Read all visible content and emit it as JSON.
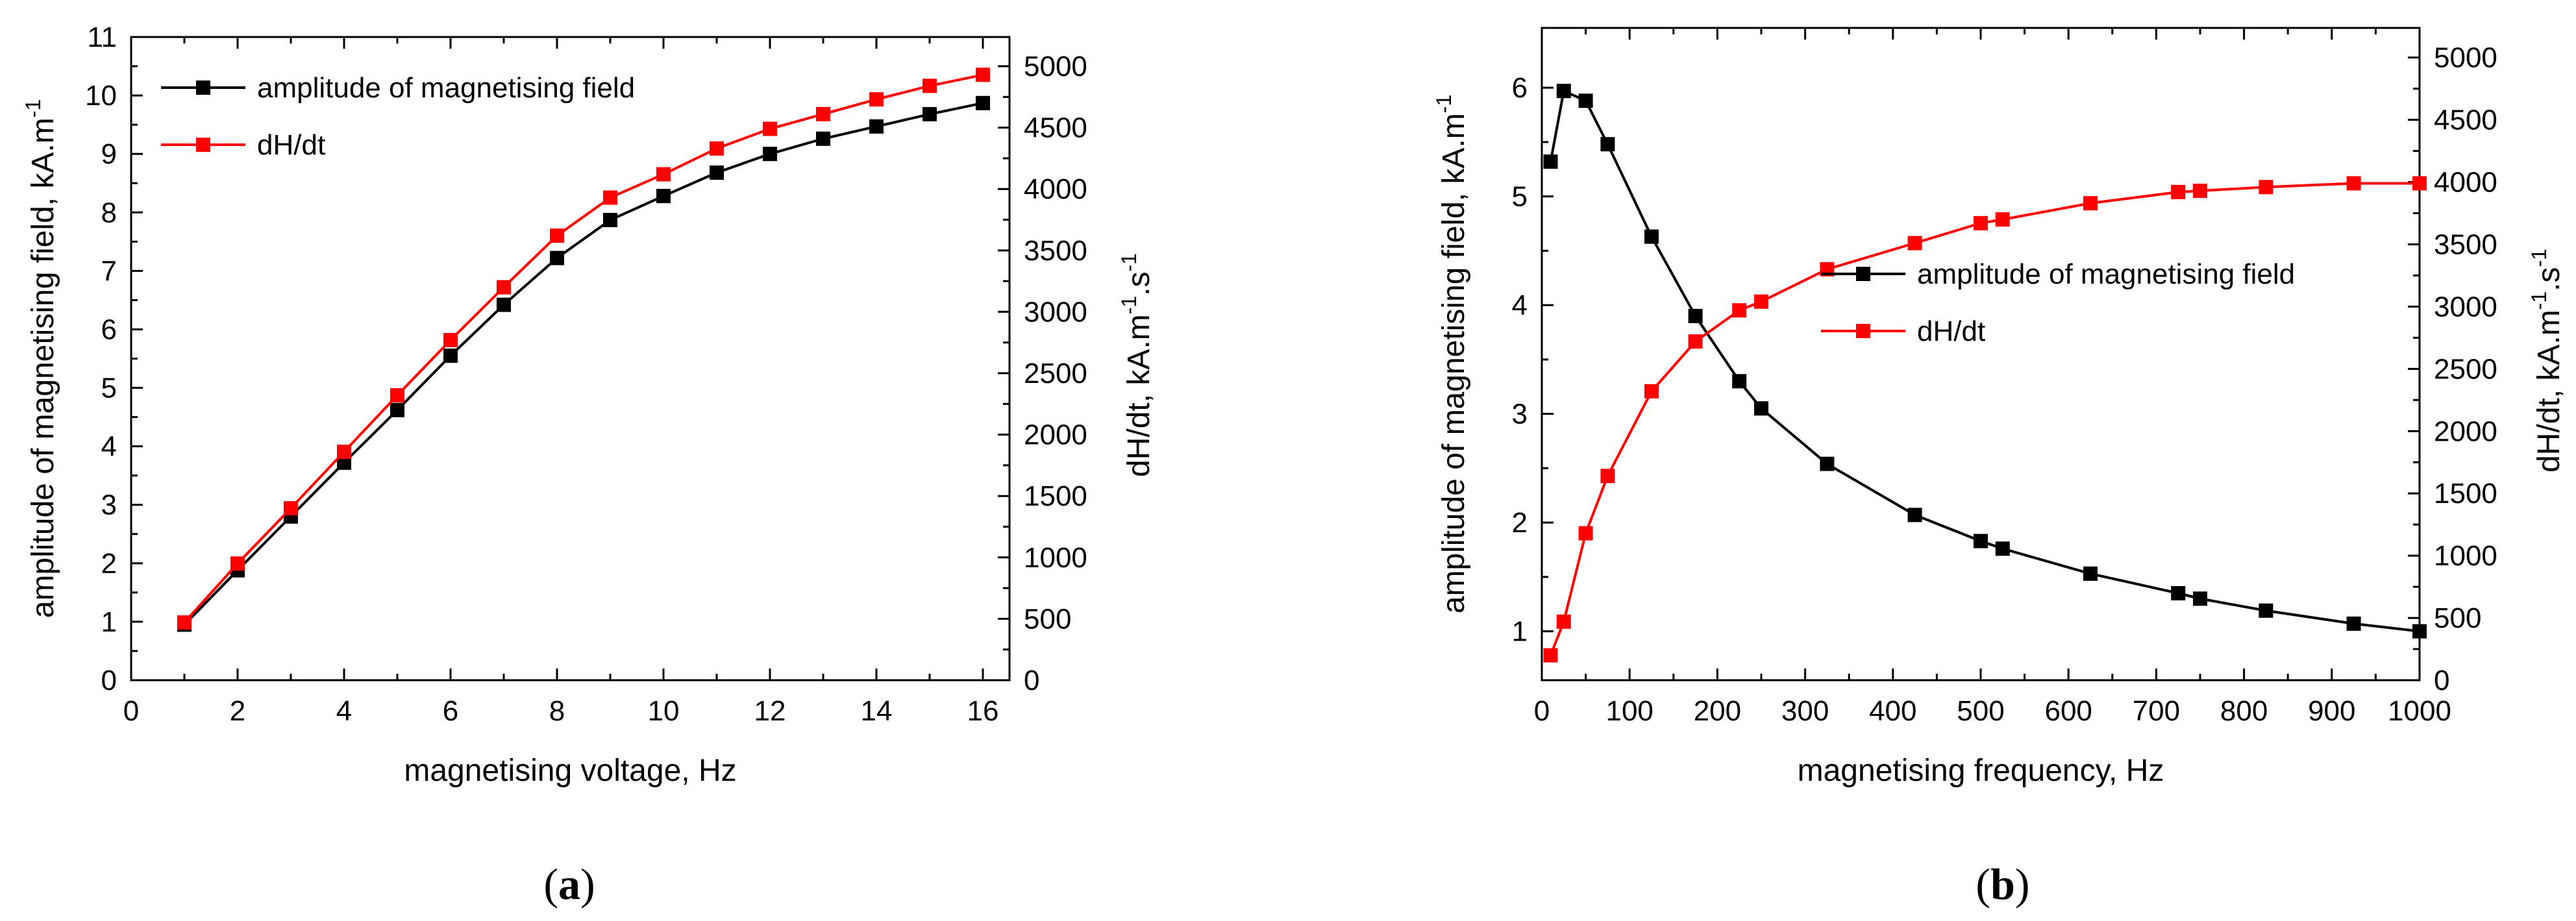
{
  "chart_data": [
    {
      "type": "line",
      "panel_label": "a",
      "xlabel": "magnetising voltage, Hz",
      "ylabel_left": "amplitude of magnetising field, kA.m",
      "ylabel_left_sup": "-1",
      "ylabel_right": "dH/dt, kA.m",
      "ylabel_right_sup1": "-1",
      "ylabel_right_mid": ".s",
      "ylabel_right_sup2": "-1",
      "xlim": [
        0,
        16.5
      ],
      "ylim_left": [
        0,
        11
      ],
      "ylim_right": [
        0,
        5238
      ],
      "xticks": [
        0,
        2,
        4,
        6,
        8,
        10,
        12,
        14,
        16
      ],
      "yticks_left": [
        0,
        1,
        2,
        3,
        4,
        5,
        6,
        7,
        8,
        9,
        10,
        11
      ],
      "yticks_right": [
        0,
        500,
        1000,
        1500,
        2000,
        2500,
        3000,
        3500,
        4000,
        4500,
        5000
      ],
      "legend_position": "top-left",
      "series": [
        {
          "name": "amplitude of magnetising field",
          "axis": "left",
          "color": "#000000",
          "x": [
            1,
            2,
            3,
            4,
            5,
            6,
            7,
            8,
            9,
            10,
            11,
            12,
            13,
            14,
            15,
            16
          ],
          "y": [
            0.95,
            1.88,
            2.8,
            3.72,
            4.62,
            5.55,
            6.42,
            7.22,
            7.87,
            8.28,
            8.68,
            9.0,
            9.26,
            9.47,
            9.68,
            9.87
          ]
        },
        {
          "name": "dH/dt",
          "axis": "right",
          "color": "#ff0000",
          "x": [
            1,
            2,
            3,
            4,
            5,
            6,
            7,
            8,
            9,
            10,
            11,
            12,
            13,
            14,
            15,
            16
          ],
          "y": [
            470,
            950,
            1400,
            1860,
            2320,
            2770,
            3200,
            3620,
            3930,
            4120,
            4330,
            4490,
            4610,
            4730,
            4840,
            4930
          ]
        }
      ]
    },
    {
      "type": "line",
      "panel_label": "b",
      "xlabel": "magnetising frequency, Hz",
      "ylabel_left": "amplitude of magnetising field, kA.m",
      "ylabel_left_sup": "-1",
      "ylabel_right": "dH/dt, kA.m",
      "ylabel_right_sup1": "-1",
      "ylabel_right_mid": ".s",
      "ylabel_right_sup2": "-1",
      "xlim": [
        0,
        1000
      ],
      "ylim_left": [
        0.55,
        6.55
      ],
      "ylim_right": [
        0,
        5238
      ],
      "xticks": [
        0,
        100,
        200,
        300,
        400,
        500,
        600,
        700,
        800,
        900,
        1000
      ],
      "yticks_left": [
        1,
        2,
        3,
        4,
        5,
        6
      ],
      "yticks_right": [
        0,
        500,
        1000,
        1500,
        2000,
        2500,
        3000,
        3500,
        4000,
        4500,
        5000
      ],
      "legend_position": "center-right",
      "series": [
        {
          "name": "amplitude of magnetising field",
          "axis": "left",
          "color": "#000000",
          "x": [
            10,
            25,
            50,
            75,
            125,
            175,
            225,
            250,
            325,
            425,
            500,
            525,
            625,
            725,
            750,
            825,
            925,
            1000
          ],
          "y": [
            5.32,
            5.97,
            5.88,
            5.48,
            4.63,
            3.9,
            3.3,
            3.05,
            2.54,
            2.07,
            1.83,
            1.76,
            1.53,
            1.35,
            1.3,
            1.19,
            1.07,
            1.0
          ]
        },
        {
          "name": "dH/dt",
          "axis": "right",
          "color": "#ff0000",
          "x": [
            10,
            25,
            50,
            75,
            125,
            175,
            225,
            250,
            325,
            425,
            500,
            525,
            625,
            725,
            750,
            825,
            925,
            1000
          ],
          "y": [
            200,
            470,
            1180,
            1640,
            2320,
            2720,
            2970,
            3040,
            3300,
            3510,
            3670,
            3700,
            3830,
            3920,
            3930,
            3960,
            3990,
            3990
          ]
        }
      ]
    }
  ]
}
